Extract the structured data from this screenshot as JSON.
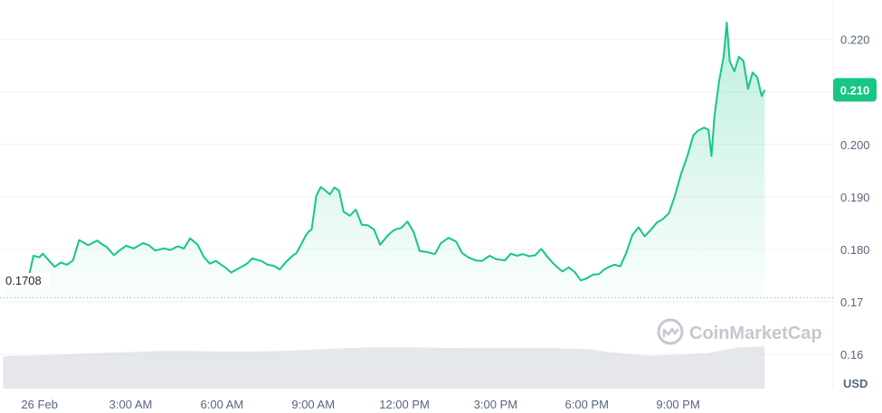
{
  "chart_data": {
    "type": "area",
    "currency_label": "USD",
    "watermark": "CoinMarketCap",
    "current_price_label": "0.210",
    "reference_price_label": "0.1708",
    "reference_price": 0.1708,
    "ylim": [
      0.1535,
      0.2275
    ],
    "y_ticks": [
      0.16,
      0.17,
      0.18,
      0.19,
      0.2,
      0.21,
      0.22
    ],
    "y_tick_labels": [
      "0.16",
      "0.17",
      "0.180",
      "0.190",
      "0.200",
      "0.210",
      "0.220"
    ],
    "xlim": [
      -1.3,
      26.1
    ],
    "x_ticks": [
      0,
      3,
      6,
      9,
      12,
      15,
      18,
      21
    ],
    "x_tick_labels": [
      "26 Feb",
      "3:00 AM",
      "6:00 AM",
      "9:00 AM",
      "12:00 PM",
      "3:00 PM",
      "6:00 PM",
      "9:00 PM"
    ],
    "x_unit": "hours",
    "series": [
      {
        "color": "#16c784",
        "x": [
          -1.2,
          -1.0,
          -0.9,
          -0.8,
          -0.6,
          -0.4,
          -0.2,
          0.0,
          0.1,
          0.25,
          0.35,
          0.5,
          0.7,
          0.9,
          1.1,
          1.3,
          1.6,
          1.9,
          2.0,
          2.2,
          2.45,
          2.65,
          2.85,
          3.1,
          3.4,
          3.6,
          3.8,
          4.1,
          4.3,
          4.55,
          4.75,
          4.95,
          5.2,
          5.4,
          5.6,
          5.8,
          6.1,
          6.3,
          6.55,
          6.8,
          7.0,
          7.3,
          7.5,
          7.7,
          7.9,
          8.1,
          8.3,
          8.45,
          8.6,
          8.75,
          8.85,
          8.95,
          9.1,
          9.25,
          9.4,
          9.55,
          9.7,
          9.85,
          10.0,
          10.2,
          10.4,
          10.6,
          10.8,
          11.0,
          11.2,
          11.4,
          11.55,
          11.7,
          11.9,
          12.1,
          12.3,
          12.5,
          12.75,
          13.0,
          13.2,
          13.45,
          13.7,
          13.9,
          14.1,
          14.35,
          14.55,
          14.8,
          15.0,
          15.3,
          15.5,
          15.7,
          15.9,
          16.1,
          16.3,
          16.5,
          16.7,
          16.9,
          17.05,
          17.2,
          17.4,
          17.6,
          17.8,
          18.0,
          18.2,
          18.4,
          18.55,
          18.7,
          18.9,
          19.1,
          19.3,
          19.5,
          19.7,
          19.9,
          20.1,
          20.3,
          20.5,
          20.7,
          20.9,
          21.1,
          21.3,
          21.5,
          21.65,
          21.85,
          22.0,
          22.1,
          22.2,
          22.35,
          22.5,
          22.6,
          22.7,
          22.85,
          23.0,
          23.15,
          23.3,
          23.45,
          23.6,
          23.75,
          23.85
        ],
        "values": [
          0.1735,
          0.1736,
          0.1731,
          0.1733,
          0.173,
          0.1737,
          0.1788,
          0.1785,
          0.1792,
          0.1783,
          0.1776,
          0.1767,
          0.1775,
          0.1771,
          0.1779,
          0.1818,
          0.1808,
          0.1817,
          0.1812,
          0.1805,
          0.1789,
          0.1799,
          0.1807,
          0.1802,
          0.1812,
          0.1808,
          0.1798,
          0.1802,
          0.1799,
          0.1806,
          0.1802,
          0.1821,
          0.1809,
          0.1786,
          0.1773,
          0.1778,
          0.1766,
          0.1756,
          0.1764,
          0.1772,
          0.1783,
          0.1778,
          0.1771,
          0.1769,
          0.1762,
          0.1776,
          0.1787,
          0.1793,
          0.1809,
          0.1826,
          0.1834,
          0.1838,
          0.1902,
          0.1919,
          0.1912,
          0.1905,
          0.1918,
          0.1912,
          0.1872,
          0.1864,
          0.1876,
          0.1847,
          0.1846,
          0.1838,
          0.1809,
          0.1823,
          0.1832,
          0.1838,
          0.1841,
          0.1853,
          0.1834,
          0.1797,
          0.1795,
          0.1791,
          0.1812,
          0.1822,
          0.1815,
          0.1793,
          0.1785,
          0.1779,
          0.1778,
          0.1788,
          0.1782,
          0.1779,
          0.1792,
          0.1788,
          0.1791,
          0.1787,
          0.1789,
          0.1801,
          0.1786,
          0.1773,
          0.1765,
          0.1758,
          0.1766,
          0.1757,
          0.1741,
          0.1745,
          0.1752,
          0.1753,
          0.1761,
          0.1766,
          0.1771,
          0.1768,
          0.1794,
          0.1828,
          0.1842,
          0.1825,
          0.1837,
          0.1851,
          0.1858,
          0.1869,
          0.1903,
          0.1944,
          0.1977,
          0.2017,
          0.2026,
          0.2032,
          0.2028,
          0.1978,
          0.2056,
          0.2121,
          0.2168,
          0.2232,
          0.2158,
          0.2139,
          0.2167,
          0.2159,
          0.2106,
          0.2137,
          0.2128,
          0.2092,
          0.2104
        ]
      }
    ],
    "volume": {
      "color": "#cfd3da",
      "x": [
        -1.2,
        0.0,
        1.0,
        2.0,
        3.0,
        4.0,
        5.0,
        6.0,
        7.0,
        8.0,
        9.0,
        10.0,
        11.0,
        12.0,
        13.0,
        14.0,
        15.0,
        16.0,
        17.0,
        18.0,
        19.0,
        20.0,
        21.0,
        22.0,
        23.0,
        23.85
      ],
      "values": [
        0.69,
        0.71,
        0.73,
        0.76,
        0.78,
        0.8,
        0.8,
        0.79,
        0.79,
        0.8,
        0.83,
        0.86,
        0.88,
        0.88,
        0.87,
        0.86,
        0.86,
        0.86,
        0.86,
        0.84,
        0.76,
        0.7,
        0.72,
        0.76,
        0.88,
        0.9
      ]
    }
  }
}
